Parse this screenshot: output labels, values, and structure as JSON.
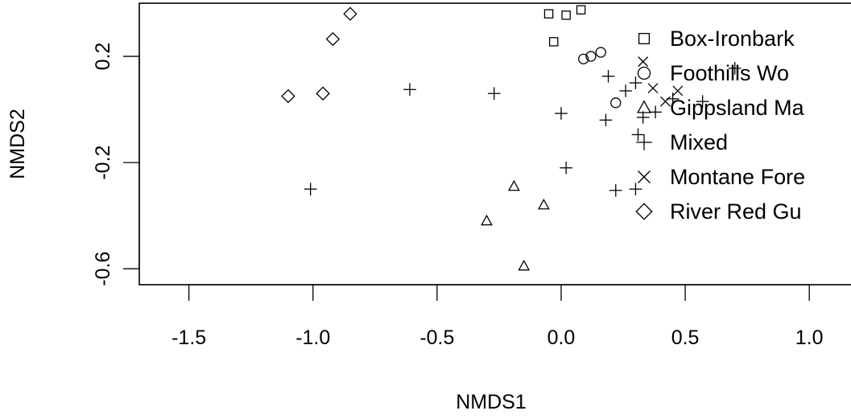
{
  "chart_data": {
    "type": "scatter",
    "title": "",
    "xlabel": "NMDS1",
    "ylabel": "NMDS2",
    "xlim": [
      -1.7,
      1.22
    ],
    "ylim": [
      -0.66,
      0.4
    ],
    "x_ticks": [
      -1.5,
      -1.0,
      -0.5,
      0.0,
      0.5,
      1.0
    ],
    "x_tick_labels": [
      "-1.5",
      "-1.0",
      "-0.5",
      "0.0",
      "0.5",
      "1.0"
    ],
    "y_ticks": [
      -0.6,
      -0.2,
      0.2
    ],
    "y_tick_labels": [
      "-0.6",
      "-0.2",
      "0.2"
    ],
    "grid": false,
    "legend_position": "top-right",
    "series": [
      {
        "name": "Box-Ironbark",
        "marker": "square",
        "points": [
          [
            -0.05,
            0.36
          ],
          [
            0.02,
            0.355
          ],
          [
            0.08,
            0.375
          ],
          [
            -0.03,
            0.255
          ]
        ]
      },
      {
        "name": "Foothills Wo",
        "marker": "circle",
        "points": [
          [
            0.09,
            0.19
          ],
          [
            0.12,
            0.2
          ],
          [
            0.16,
            0.215
          ],
          [
            0.22,
            0.025
          ]
        ]
      },
      {
        "name": "Gippsland Ma",
        "marker": "triangle",
        "points": [
          [
            -0.19,
            -0.29
          ],
          [
            -0.07,
            -0.36
          ],
          [
            -0.3,
            -0.42
          ],
          [
            -0.15,
            -0.59
          ]
        ]
      },
      {
        "name": "Mixed",
        "marker": "plus",
        "points": [
          [
            -1.01,
            -0.3
          ],
          [
            -0.61,
            0.075
          ],
          [
            -0.27,
            0.06
          ],
          [
            0.0,
            -0.015
          ],
          [
            0.02,
            -0.22
          ],
          [
            0.19,
            0.125
          ],
          [
            0.18,
            -0.04
          ],
          [
            0.26,
            0.07
          ],
          [
            0.3,
            0.1
          ],
          [
            0.33,
            -0.03
          ],
          [
            0.31,
            -0.095
          ],
          [
            0.22,
            -0.305
          ],
          [
            0.3,
            -0.3
          ],
          [
            0.38,
            -0.01
          ],
          [
            0.45,
            0.04
          ],
          [
            0.57,
            0.03
          ],
          [
            0.7,
            0.155
          ]
        ]
      },
      {
        "name": "Montane Fore",
        "marker": "cross",
        "points": [
          [
            0.33,
            0.18
          ],
          [
            0.42,
            0.03
          ],
          [
            0.47,
            0.07
          ],
          [
            0.37,
            0.08
          ]
        ]
      },
      {
        "name": "River Red Gu",
        "marker": "diamond",
        "points": [
          [
            -0.85,
            0.36
          ],
          [
            -0.92,
            0.265
          ],
          [
            -1.1,
            0.05
          ],
          [
            -0.96,
            0.06
          ]
        ]
      }
    ]
  },
  "legend": {
    "items": [
      {
        "label": "Box-Ironbark",
        "marker": "square"
      },
      {
        "label": "Foothills Wo",
        "marker": "circle"
      },
      {
        "label": "Gippsland Ma",
        "marker": "triangle"
      },
      {
        "label": "Mixed",
        "marker": "plus"
      },
      {
        "label": "Montane Fore",
        "marker": "cross"
      },
      {
        "label": "River Red Gu",
        "marker": "diamond"
      }
    ]
  },
  "colors": {
    "foreground": "#000000",
    "background": "#ffffff"
  }
}
